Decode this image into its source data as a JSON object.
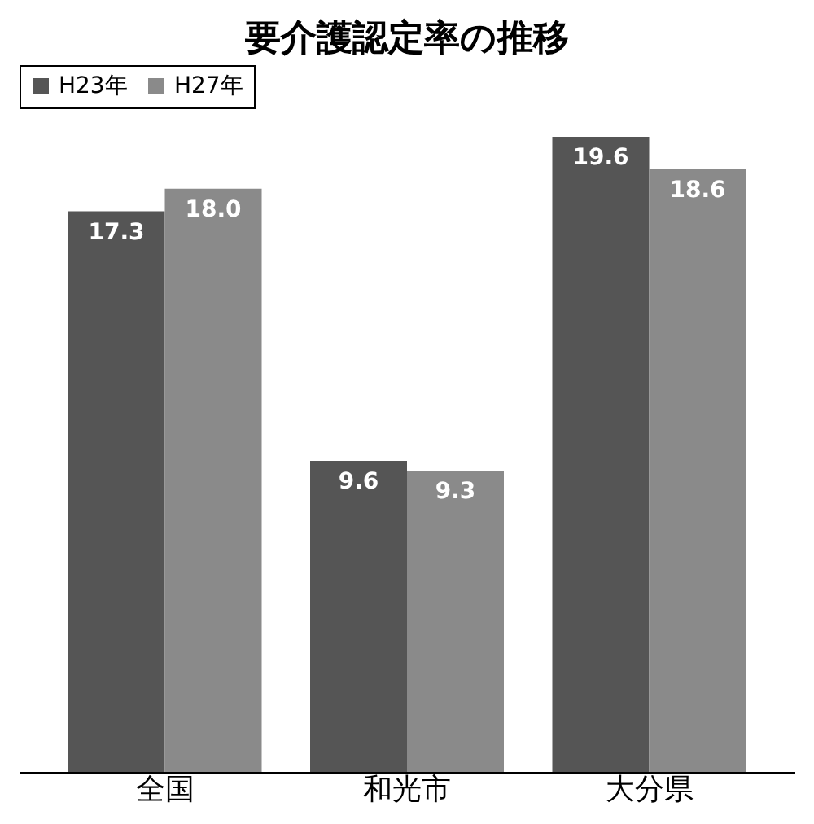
{
  "chart_data": {
    "type": "bar",
    "title": "要介護認定率の推移",
    "categories": [
      "全国",
      "和光市",
      "大分県"
    ],
    "series": [
      {
        "name": "H23年",
        "color": "#555555",
        "values": [
          17.3,
          9.6,
          19.6
        ],
        "value_labels": [
          "17.3",
          "9.6",
          "19.6"
        ]
      },
      {
        "name": "H27年",
        "color": "#8a8a8a",
        "values": [
          18.0,
          9.3,
          18.6
        ],
        "value_labels": [
          "18.0",
          "9.3",
          "18.6"
        ]
      }
    ],
    "tick_labels": "x",
    "legend": "top",
    "grid": false
  }
}
